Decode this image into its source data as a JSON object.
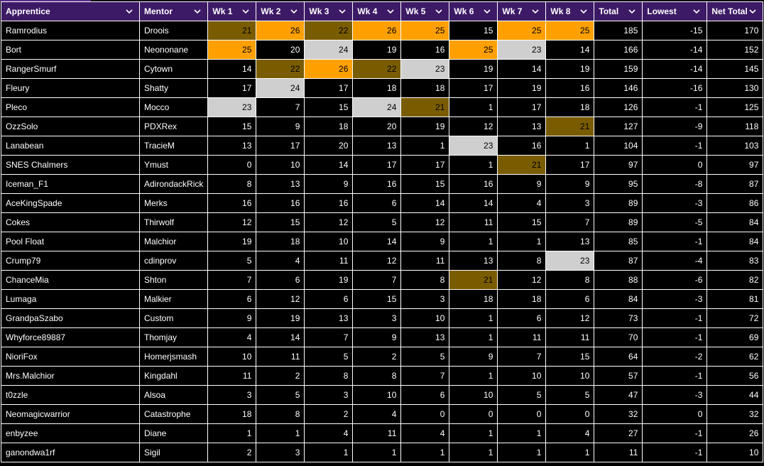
{
  "columns": [
    "Apprentice",
    "Mentor",
    "Wk 1",
    "Wk 2",
    "Wk 3",
    "Wk 4",
    "Wk 5",
    "Wk 6",
    "Wk 7",
    "Wk 8",
    "Total",
    "Lowest",
    "Net Total"
  ],
  "colors": {
    "header_bg": "#3d1a66",
    "gold": "#ffa000",
    "silver": "#cfcfcf",
    "bronze": "#7a5c00",
    "accent": "#5b2d8a"
  },
  "icon": "chevron-down-icon",
  "rows": [
    {
      "cells": [
        "Ramrodius",
        "Droois",
        "21",
        "26",
        "22",
        "26",
        "25",
        "15",
        "25",
        "25",
        "185",
        "-15",
        "170"
      ],
      "hl": [
        "",
        "",
        "b",
        "g",
        "b",
        "g",
        "g",
        "",
        "g",
        "g",
        "",
        "",
        ""
      ]
    },
    {
      "cells": [
        "Bort",
        "Neononane",
        "25",
        "20",
        "24",
        "19",
        "16",
        "25",
        "23",
        "14",
        "166",
        "-14",
        "152"
      ],
      "hl": [
        "",
        "",
        "g",
        "",
        "s",
        "",
        "",
        "g",
        "s",
        "",
        "",
        "",
        ""
      ]
    },
    {
      "cells": [
        "RangerSmurf",
        "Cytown",
        "14",
        "22",
        "26",
        "22",
        "23",
        "19",
        "14",
        "19",
        "159",
        "-14",
        "145"
      ],
      "hl": [
        "",
        "",
        "",
        "b",
        "g",
        "b",
        "s",
        "",
        "",
        "",
        "",
        "",
        ""
      ]
    },
    {
      "cells": [
        "Fleury",
        "Shatty",
        "17",
        "24",
        "17",
        "18",
        "18",
        "17",
        "19",
        "16",
        "146",
        "-16",
        "130"
      ],
      "hl": [
        "",
        "",
        "",
        "s",
        "",
        "",
        "",
        "",
        "",
        "",
        "",
        "",
        ""
      ]
    },
    {
      "cells": [
        "Pleco",
        "Mocco",
        "23",
        "7",
        "15",
        "24",
        "21",
        "1",
        "17",
        "18",
        "126",
        "-1",
        "125"
      ],
      "hl": [
        "",
        "",
        "s",
        "",
        "",
        "s",
        "b",
        "",
        "",
        "",
        "",
        "",
        ""
      ]
    },
    {
      "cells": [
        "OzzSolo",
        "PDXRex",
        "15",
        "9",
        "18",
        "20",
        "19",
        "12",
        "13",
        "21",
        "127",
        "-9",
        "118"
      ],
      "hl": [
        "",
        "",
        "",
        "",
        "",
        "",
        "",
        "",
        "",
        "b",
        "",
        "",
        ""
      ]
    },
    {
      "cells": [
        "Lanabean",
        "TracieM",
        "13",
        "17",
        "20",
        "13",
        "1",
        "23",
        "16",
        "1",
        "104",
        "-1",
        "103"
      ],
      "hl": [
        "",
        "",
        "",
        "",
        "",
        "",
        "",
        "s",
        "",
        "",
        "",
        "",
        ""
      ]
    },
    {
      "cells": [
        "SNES Chalmers",
        "Ymust",
        "0",
        "10",
        "14",
        "17",
        "17",
        "1",
        "21",
        "17",
        "97",
        "0",
        "97"
      ],
      "hl": [
        "",
        "",
        "",
        "",
        "",
        "",
        "",
        "",
        "b",
        "",
        "",
        "",
        ""
      ]
    },
    {
      "cells": [
        "Iceman_F1",
        "AdirondackRick",
        "8",
        "13",
        "9",
        "16",
        "15",
        "16",
        "9",
        "9",
        "95",
        "-8",
        "87"
      ],
      "hl": []
    },
    {
      "cells": [
        "AceKingSpade",
        "Merks",
        "16",
        "16",
        "16",
        "6",
        "14",
        "14",
        "4",
        "3",
        "89",
        "-3",
        "86"
      ],
      "hl": []
    },
    {
      "cells": [
        "Cokes",
        "Thirwolf",
        "12",
        "15",
        "12",
        "5",
        "12",
        "11",
        "15",
        "7",
        "89",
        "-5",
        "84"
      ],
      "hl": []
    },
    {
      "cells": [
        "Pool Float",
        "Malchior",
        "19",
        "18",
        "10",
        "14",
        "9",
        "1",
        "1",
        "13",
        "85",
        "-1",
        "84"
      ],
      "hl": []
    },
    {
      "cells": [
        "Crump79",
        "cdinprov",
        "5",
        "4",
        "11",
        "12",
        "11",
        "13",
        "8",
        "23",
        "87",
        "-4",
        "83"
      ],
      "hl": [
        "",
        "",
        "",
        "",
        "",
        "",
        "",
        "",
        "",
        "s",
        "",
        "",
        ""
      ]
    },
    {
      "cells": [
        "ChanceMia",
        "Shton",
        "7",
        "6",
        "19",
        "7",
        "8",
        "21",
        "12",
        "8",
        "88",
        "-6",
        "82"
      ],
      "hl": [
        "",
        "",
        "",
        "",
        "",
        "",
        "",
        "b",
        "",
        "",
        "",
        "",
        ""
      ]
    },
    {
      "cells": [
        "Lumaga",
        "Malkier",
        "6",
        "12",
        "6",
        "15",
        "3",
        "18",
        "18",
        "6",
        "84",
        "-3",
        "81"
      ],
      "hl": []
    },
    {
      "cells": [
        "GrandpaSzabo",
        "Custom",
        "9",
        "19",
        "13",
        "3",
        "10",
        "1",
        "6",
        "12",
        "73",
        "-1",
        "72"
      ],
      "hl": []
    },
    {
      "cells": [
        "Whyforce89887",
        "Thomjay",
        "4",
        "14",
        "7",
        "9",
        "13",
        "1",
        "11",
        "11",
        "70",
        "-1",
        "69"
      ],
      "hl": []
    },
    {
      "cells": [
        "NioriFox",
        "Homerjsmash",
        "10",
        "11",
        "5",
        "2",
        "5",
        "9",
        "7",
        "15",
        "64",
        "-2",
        "62"
      ],
      "hl": []
    },
    {
      "cells": [
        "Mrs.Malchior",
        "Kingdahl",
        "11",
        "2",
        "8",
        "8",
        "7",
        "1",
        "10",
        "10",
        "57",
        "-1",
        "56"
      ],
      "hl": []
    },
    {
      "cells": [
        "t0zzle",
        "Alsoa",
        "3",
        "5",
        "3",
        "10",
        "6",
        "10",
        "5",
        "5",
        "47",
        "-3",
        "44"
      ],
      "hl": []
    },
    {
      "cells": [
        "Neomagicwarrior",
        "Catastrophe",
        "18",
        "8",
        "2",
        "4",
        "0",
        "0",
        "0",
        "0",
        "32",
        "0",
        "32"
      ],
      "hl": []
    },
    {
      "cells": [
        "enbyzee",
        "Diane",
        "1",
        "1",
        "4",
        "11",
        "4",
        "1",
        "1",
        "4",
        "27",
        "-1",
        "26"
      ],
      "hl": []
    },
    {
      "cells": [
        "ganondwa1rf",
        "Sigil",
        "2",
        "3",
        "1",
        "1",
        "1",
        "1",
        "1",
        "1",
        "11",
        "-1",
        "10"
      ],
      "hl": []
    }
  ]
}
